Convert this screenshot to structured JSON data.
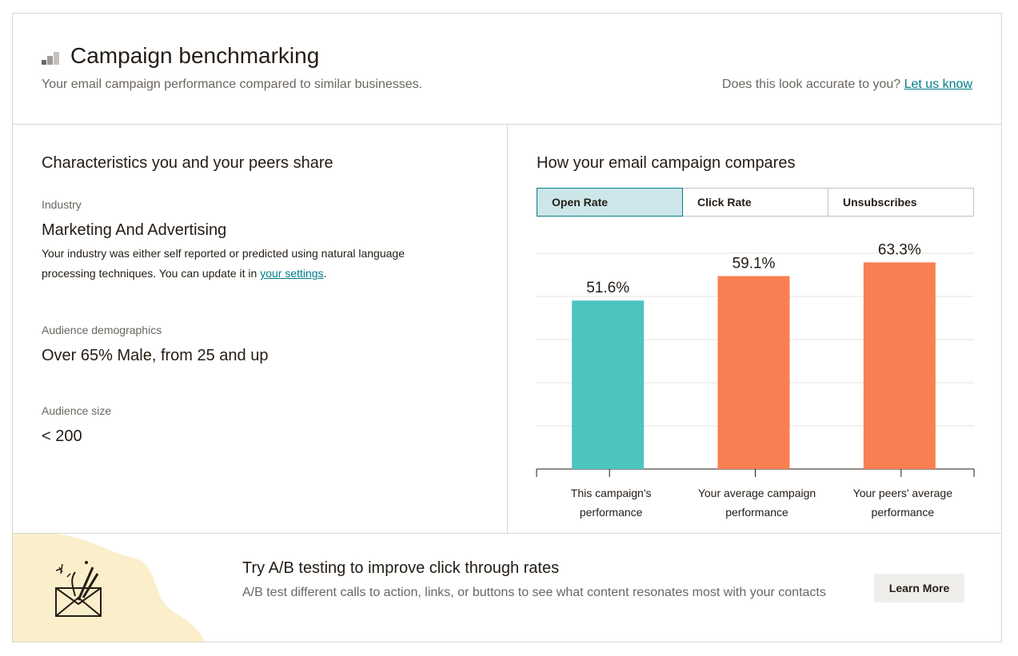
{
  "header": {
    "title": "Campaign benchmarking",
    "subtitle": "Your email campaign performance compared to similar businesses.",
    "accuracy_prompt": "Does this look accurate to you?",
    "accuracy_link": "Let us know",
    "icon": "bar-chart-icon"
  },
  "characteristics": {
    "heading": "Characteristics you and your peers share",
    "industry_label": "Industry",
    "industry_value": "Marketing And Advertising",
    "industry_desc_before": "Your industry was either self reported or predicted using natural language processing techniques. You can update it in ",
    "industry_desc_link": "your settings",
    "industry_desc_after": ".",
    "demographics_label": "Audience demographics",
    "demographics_value": "Over 65% Male, from 25 and up",
    "size_label": "Audience size",
    "size_value": "< 200"
  },
  "comparison": {
    "heading": "How your email campaign compares",
    "tabs": [
      {
        "label": "Open Rate",
        "active": true
      },
      {
        "label": "Click Rate",
        "active": false
      },
      {
        "label": "Unsubscribes",
        "active": false
      }
    ]
  },
  "chart_data": {
    "type": "bar",
    "title": "",
    "xlabel": "",
    "ylabel": "",
    "ylim": [
      0,
      70
    ],
    "grid": true,
    "categories": [
      [
        "This campaign's",
        "performance"
      ],
      [
        "Your average campaign",
        "performance"
      ],
      [
        "Your peers' average",
        "performance"
      ]
    ],
    "values": [
      51.6,
      59.1,
      63.3
    ],
    "value_labels": [
      "51.6%",
      "59.1%",
      "63.3%"
    ],
    "colors": [
      "#4cc4c0",
      "#f87f51",
      "#f87f51"
    ]
  },
  "promo": {
    "title": "Try A/B testing to improve click through rates",
    "description": "A/B test different calls to action, links, or buttons to see what content resonates most with your contacts",
    "button": "Learn More",
    "illustration": "envelope-illustration-icon",
    "accent_color": "#fbeecb"
  }
}
